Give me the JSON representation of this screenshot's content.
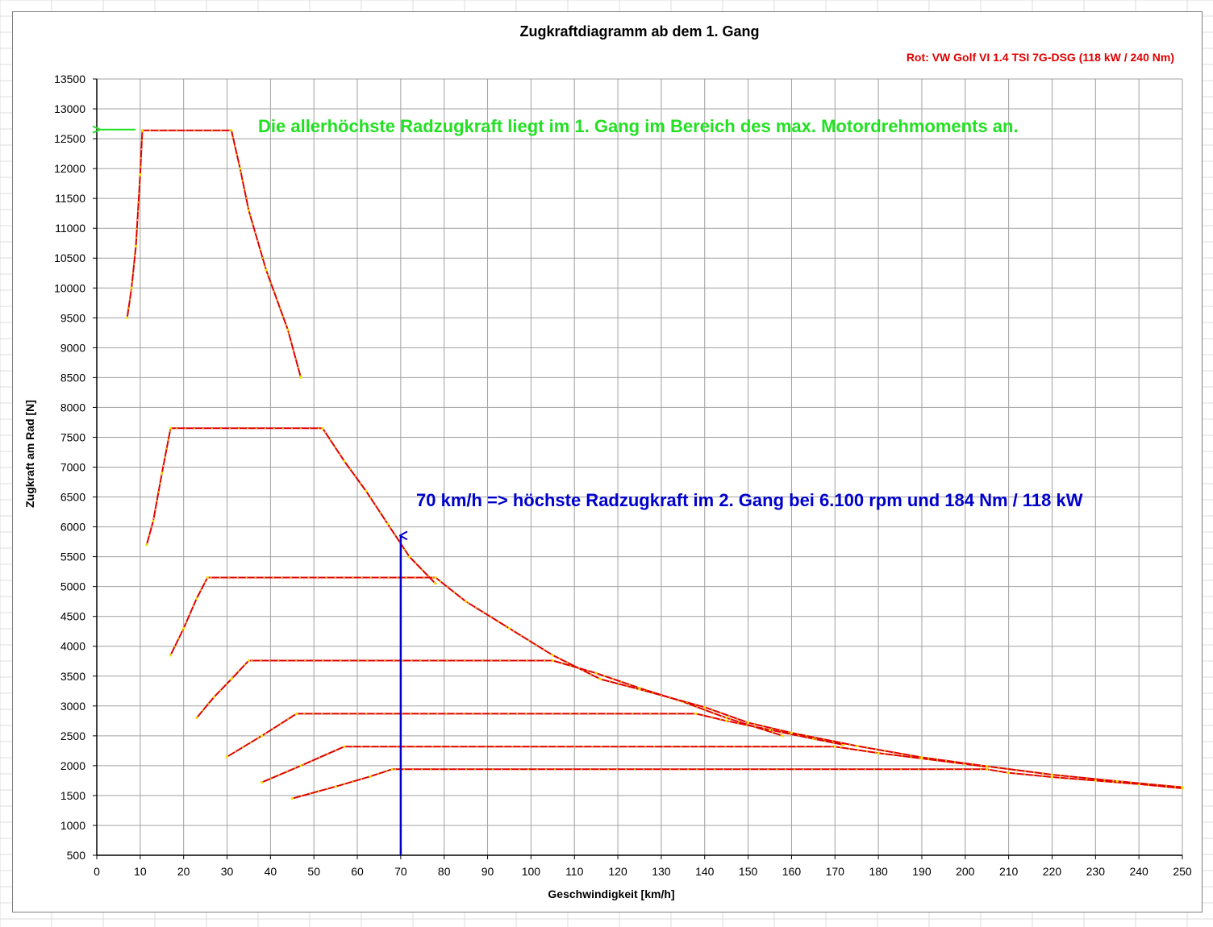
{
  "colors": {
    "series_line": "#e00000",
    "series_marker": "#f0e000",
    "grid": "#a0a0a0",
    "annotation_green": "#22e022",
    "annotation_blue": "#0000cc",
    "subtitle": "#e00000"
  },
  "chart_data": {
    "type": "line",
    "title": "Zugkraftdiagramm ab dem 1. Gang",
    "subtitle": "Rot: VW Golf VI 1.4 TSI 7G-DSG (118 kW / 240 Nm)",
    "xlabel": "Geschwindigkeit [km/h]",
    "ylabel": "Zugkraft am Rad [N]",
    "xlim": [
      0,
      250
    ],
    "ylim": [
      500,
      13500
    ],
    "x_ticks": [
      "0",
      "10",
      "20",
      "30",
      "40",
      "50",
      "60",
      "70",
      "80",
      "90",
      "100",
      "110",
      "120",
      "130",
      "140",
      "150",
      "160",
      "170",
      "180",
      "190",
      "200",
      "210",
      "220",
      "230",
      "240",
      "250"
    ],
    "y_ticks": [
      "500",
      "1000",
      "1500",
      "2000",
      "2500",
      "3000",
      "3500",
      "4000",
      "4500",
      "5000",
      "5500",
      "6000",
      "6500",
      "7000",
      "7500",
      "8000",
      "8500",
      "9000",
      "9500",
      "10000",
      "10500",
      "11000",
      "11500",
      "12000",
      "12500",
      "13000",
      "13500"
    ],
    "grid": true,
    "legend": "none",
    "series": [
      {
        "points": [
          [
            7,
            9500
          ],
          [
            8,
            10000
          ],
          [
            9,
            10700
          ],
          [
            10,
            11900
          ],
          [
            10.5,
            12640
          ],
          [
            31,
            12640
          ],
          [
            33,
            12000
          ],
          [
            35,
            11300
          ],
          [
            39,
            10300
          ],
          [
            44,
            9300
          ],
          [
            47,
            8500
          ]
        ]
      },
      {
        "points": [
          [
            11.5,
            5700
          ],
          [
            13,
            6100
          ],
          [
            15,
            6900
          ],
          [
            17,
            7650
          ],
          [
            52,
            7650
          ],
          [
            57,
            7100
          ],
          [
            62,
            6600
          ],
          [
            67,
            6050
          ],
          [
            72,
            5500
          ],
          [
            78,
            5050
          ]
        ]
      },
      {
        "points": [
          [
            17,
            3850
          ],
          [
            20,
            4300
          ],
          [
            23,
            4800
          ],
          [
            25.5,
            5150
          ],
          [
            78,
            5150
          ],
          [
            85,
            4750
          ],
          [
            95,
            4300
          ],
          [
            105,
            3850
          ],
          [
            116,
            3450
          ]
        ]
      },
      {
        "points": [
          [
            23,
            2800
          ],
          [
            27,
            3150
          ],
          [
            31,
            3450
          ],
          [
            35,
            3760
          ],
          [
            105,
            3760
          ],
          [
            115,
            3550
          ],
          [
            125,
            3300
          ],
          [
            135,
            3070
          ],
          [
            145,
            2800
          ],
          [
            158,
            2500
          ]
        ]
      },
      {
        "points": [
          [
            30,
            2150
          ],
          [
            38,
            2500
          ],
          [
            46,
            2870
          ],
          [
            138,
            2870
          ],
          [
            145,
            2750
          ],
          [
            155,
            2600
          ],
          [
            165,
            2450
          ],
          [
            172,
            2350
          ]
        ]
      },
      {
        "points": [
          [
            38,
            1720
          ],
          [
            47,
            2000
          ],
          [
            57,
            2320
          ],
          [
            170,
            2320
          ],
          [
            180,
            2210
          ],
          [
            190,
            2120
          ],
          [
            200,
            2030
          ],
          [
            205,
            1980
          ]
        ]
      },
      {
        "points": [
          [
            45,
            1450
          ],
          [
            55,
            1650
          ],
          [
            63,
            1820
          ],
          [
            68,
            1940
          ],
          [
            205,
            1940
          ],
          [
            210,
            1880
          ],
          [
            220,
            1810
          ],
          [
            230,
            1750
          ],
          [
            240,
            1690
          ],
          [
            250,
            1620
          ]
        ]
      },
      {
        "points": [
          [
            116,
            3450
          ],
          [
            125,
            3280
          ],
          [
            140,
            2980
          ],
          [
            150,
            2720
          ],
          [
            160,
            2550
          ],
          [
            175,
            2330
          ],
          [
            190,
            2140
          ],
          [
            205,
            1990
          ],
          [
            220,
            1850
          ],
          [
            235,
            1740
          ],
          [
            250,
            1640
          ]
        ]
      }
    ],
    "annotations": [
      {
        "text": "Die allerhöchste Radzugkraft liegt im 1. Gang im Bereich des max. Motordrehmoments an.",
        "arrow_to": [
          0,
          12640
        ]
      },
      {
        "text": "70 km/h => höchste Radzugkraft im 2. Gang bei 6.100 rpm und 184 Nm / 118 kW",
        "arrow_from": [
          70,
          500
        ],
        "arrow_to": [
          70,
          5800
        ]
      }
    ]
  }
}
